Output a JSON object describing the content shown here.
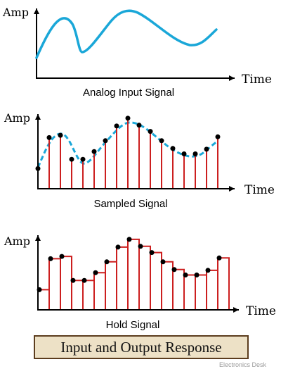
{
  "panels": [
    {
      "amp_label": "Amp",
      "time_label": "Time",
      "caption": "Analog Input Signal"
    },
    {
      "amp_label": "Amp",
      "time_label": "Time",
      "caption": "Sampled Signal"
    },
    {
      "amp_label": "Amp",
      "time_label": "Time",
      "caption": "Hold Signal"
    }
  ],
  "banner": "Input and Output Response",
  "watermark": "Electronics Desk",
  "colors": {
    "analog_curve": "#1aa7d8",
    "samples": "#cc1f1f",
    "points": "#000000",
    "axes": "#000000",
    "banner_bg": "#ede1c6",
    "banner_border": "#5c3d1e"
  },
  "sample_values": [
    0.26,
    0.66,
    0.69,
    0.38,
    0.38,
    0.48,
    0.62,
    0.81,
    0.91,
    0.82,
    0.74,
    0.62,
    0.52,
    0.45,
    0.45,
    0.51,
    0.67
  ]
}
